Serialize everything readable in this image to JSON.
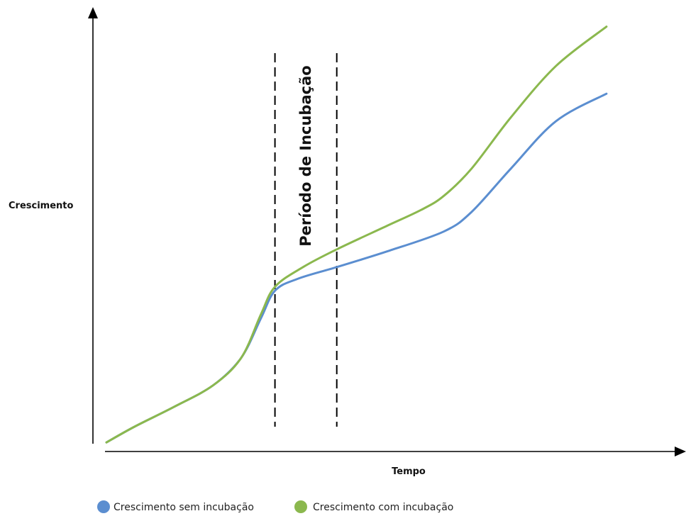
{
  "chart_data": {
    "type": "line",
    "xlabel": "Tempo",
    "ylabel": "Crescimento",
    "xlim": [
      0,
      10
    ],
    "ylim": [
      0,
      10
    ],
    "ticks": "none",
    "grid": false,
    "legend_position": "bottom-left",
    "annotation": {
      "text": "Período de Incubação",
      "x_start": 3.0,
      "x_end": 4.1
    },
    "series": [
      {
        "name": "Crescimento sem incubação",
        "color": "#5B8ED0",
        "x": [
          0,
          0.5,
          1.2,
          1.9,
          2.4,
          2.75,
          3.0,
          3.4,
          4.1,
          5.0,
          6.0,
          6.5,
          7.2,
          8.0,
          8.9
        ],
        "y": [
          0.05,
          0.45,
          0.95,
          1.5,
          2.2,
          3.2,
          3.9,
          4.2,
          4.5,
          4.9,
          5.4,
          5.9,
          7.0,
          8.2,
          8.9
        ]
      },
      {
        "name": "Crescimento com incubação",
        "color": "#8BB84E",
        "x": [
          0,
          0.5,
          1.2,
          1.9,
          2.4,
          2.75,
          3.0,
          3.5,
          4.1,
          5.0,
          5.6,
          6.0,
          6.5,
          7.2,
          8.0,
          8.9
        ],
        "y": [
          0.05,
          0.45,
          0.95,
          1.5,
          2.2,
          3.3,
          4.0,
          4.5,
          4.95,
          5.55,
          5.95,
          6.3,
          7.0,
          8.3,
          9.6,
          10.6
        ]
      }
    ]
  }
}
